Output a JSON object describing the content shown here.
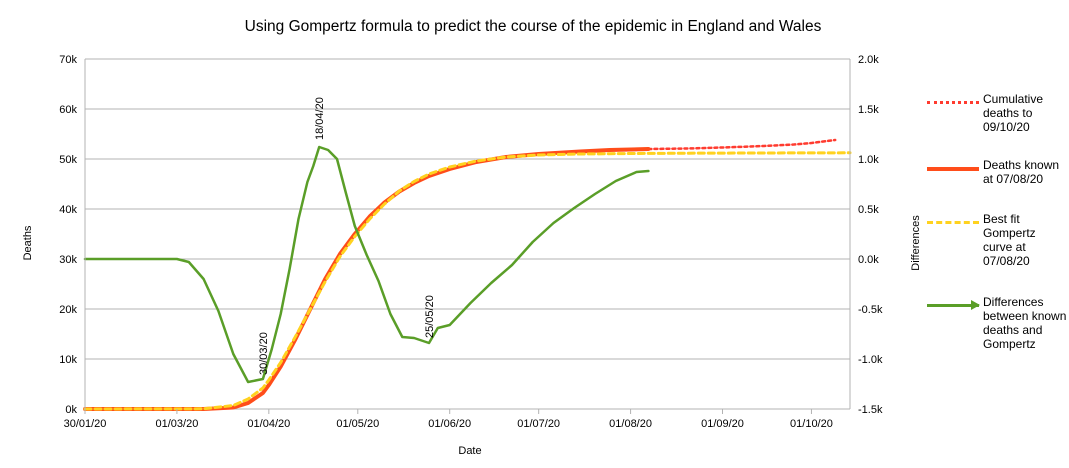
{
  "chart_data": {
    "type": "line",
    "title": "Using Gompertz formula to predict the course of the epidemic in England and Wales",
    "xlabel": "Date",
    "ylabel": "Deaths",
    "y2label": "Differences",
    "x_ticks": [
      "30/01/20",
      "01/03/20",
      "01/04/20",
      "01/05/20",
      "01/06/20",
      "01/07/20",
      "01/08/20",
      "01/09/20",
      "01/10/20"
    ],
    "x_tick_dates": [
      "2020-01-30",
      "2020-03-01",
      "2020-04-01",
      "2020-05-01",
      "2020-06-01",
      "2020-07-01",
      "2020-08-01",
      "2020-09-01",
      "2020-10-01"
    ],
    "x_range": [
      "2020-01-30",
      "2020-10-14"
    ],
    "y_ticks": [
      "0k",
      "10k",
      "20k",
      "30k",
      "40k",
      "50k",
      "60k",
      "70k"
    ],
    "ylim": [
      0,
      70000
    ],
    "y2_ticks": [
      "-1.5k",
      "-1.0k",
      "-0.5k",
      "0.0k",
      "0.5k",
      "1.0k",
      "1.5k",
      "2.0k"
    ],
    "y2lim": [
      -1500,
      2000
    ],
    "grid": "horizontal",
    "legend_position": "right",
    "annotations": [
      {
        "text": "30/03/20",
        "x": "2020-03-30",
        "y2": -1200
      },
      {
        "text": "18/04/20",
        "x": "2020-04-18",
        "y2": 1150
      },
      {
        "text": "25/05/20",
        "x": "2020-05-25",
        "y2": -830
      }
    ],
    "series": [
      {
        "name": "Cumulative deaths to 09/10/20",
        "axis": "left",
        "color": "#ff3b2f",
        "style": "dotted",
        "x": [
          "2020-08-07",
          "2020-08-20",
          "2020-09-01",
          "2020-09-15",
          "2020-09-25",
          "2020-10-01",
          "2020-10-05",
          "2020-10-09"
        ],
        "y": [
          52000,
          52100,
          52300,
          52600,
          52900,
          53200,
          53500,
          53800
        ]
      },
      {
        "name": "Deaths known at 07/08/20",
        "axis": "left",
        "color": "#ff4d1a",
        "style": "solid",
        "x": [
          "2020-01-30",
          "2020-03-10",
          "2020-03-20",
          "2020-03-25",
          "2020-03-30",
          "2020-04-01",
          "2020-04-05",
          "2020-04-10",
          "2020-04-15",
          "2020-04-20",
          "2020-04-25",
          "2020-04-30",
          "2020-05-05",
          "2020-05-10",
          "2020-05-15",
          "2020-05-20",
          "2020-05-25",
          "2020-06-01",
          "2020-06-10",
          "2020-06-20",
          "2020-07-01",
          "2020-07-15",
          "2020-07-25",
          "2020-08-07"
        ],
        "y": [
          0,
          0,
          300,
          1200,
          3200,
          4800,
          8500,
          14000,
          20000,
          26000,
          31000,
          35000,
          38500,
          41300,
          43500,
          45200,
          46600,
          48000,
          49400,
          50400,
          51000,
          51500,
          51800,
          52000
        ]
      },
      {
        "name": "Best fit Gompertz curve at 07/08/20",
        "axis": "left",
        "color": "#ffd21f",
        "style": "dashed",
        "x": [
          "2020-01-30",
          "2020-03-10",
          "2020-03-20",
          "2020-03-25",
          "2020-03-30",
          "2020-04-01",
          "2020-04-05",
          "2020-04-10",
          "2020-04-15",
          "2020-04-20",
          "2020-04-25",
          "2020-04-30",
          "2020-05-05",
          "2020-05-10",
          "2020-05-15",
          "2020-05-20",
          "2020-05-25",
          "2020-06-01",
          "2020-06-10",
          "2020-06-20",
          "2020-07-01",
          "2020-07-15",
          "2020-08-01",
          "2020-08-20",
          "2020-09-10",
          "2020-10-14"
        ],
        "y": [
          0,
          50,
          700,
          2000,
          4200,
          5800,
          9300,
          14500,
          20000,
          25500,
          30500,
          34500,
          38000,
          41000,
          43600,
          45500,
          47000,
          48400,
          49600,
          50400,
          50800,
          51000,
          51100,
          51150,
          51200,
          51250
        ]
      },
      {
        "name": "Differences between known deaths and Gompertz",
        "axis": "right",
        "color": "#5a9e28",
        "style": "solid",
        "x": [
          "2020-01-30",
          "2020-03-01",
          "2020-03-05",
          "2020-03-10",
          "2020-03-15",
          "2020-03-20",
          "2020-03-25",
          "2020-03-30",
          "2020-04-02",
          "2020-04-05",
          "2020-04-08",
          "2020-04-11",
          "2020-04-14",
          "2020-04-16",
          "2020-04-18",
          "2020-04-21",
          "2020-04-24",
          "2020-04-27",
          "2020-04-30",
          "2020-05-04",
          "2020-05-08",
          "2020-05-12",
          "2020-05-16",
          "2020-05-20",
          "2020-05-25",
          "2020-05-28",
          "2020-06-01",
          "2020-06-08",
          "2020-06-15",
          "2020-06-22",
          "2020-06-29",
          "2020-07-06",
          "2020-07-13",
          "2020-07-20",
          "2020-07-27",
          "2020-08-03",
          "2020-08-07"
        ],
        "y": [
          0,
          0,
          -30,
          -200,
          -520,
          -950,
          -1230,
          -1200,
          -900,
          -550,
          -100,
          400,
          770,
          930,
          1120,
          1090,
          1000,
          660,
          330,
          40,
          -220,
          -550,
          -780,
          -790,
          -840,
          -690,
          -660,
          -440,
          -240,
          -60,
          170,
          360,
          510,
          650,
          780,
          870,
          880
        ]
      }
    ]
  },
  "legend": {
    "items": [
      {
        "label": "Cumulative deaths to 09/10/20"
      },
      {
        "label": "Deaths known at 07/08/20"
      },
      {
        "label": "Best fit Gompertz curve at 07/08/20"
      },
      {
        "label": "Differences between known deaths and Gompertz"
      }
    ]
  }
}
